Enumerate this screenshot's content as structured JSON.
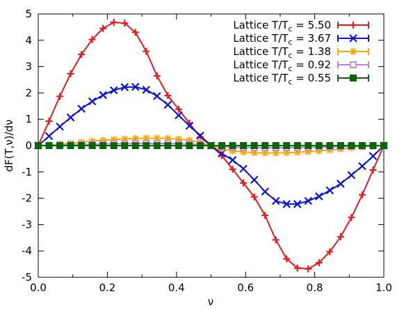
{
  "chart_data": {
    "type": "line",
    "xlabel": "ν",
    "ylabel": "dF(T,ν)/dν",
    "xlim": [
      0.0,
      1.0
    ],
    "ylim": [
      -5,
      5
    ],
    "xticks": [
      "0.0",
      "0.2",
      "0.4",
      "0.6",
      "0.8",
      "1.0"
    ],
    "yticks": [
      "-5",
      "-4",
      "-3",
      "-2",
      "-1",
      "0",
      "1",
      "2",
      "3",
      "4",
      "5"
    ],
    "grid": false,
    "legend_position": "top-right",
    "x": [
      0.0,
      0.03125,
      0.0625,
      0.09375,
      0.125,
      0.15625,
      0.1875,
      0.21875,
      0.25,
      0.28125,
      0.3125,
      0.34375,
      0.375,
      0.40625,
      0.4375,
      0.46875,
      0.5,
      0.53125,
      0.5625,
      0.59375,
      0.625,
      0.65625,
      0.6875,
      0.71875,
      0.75,
      0.78125,
      0.8125,
      0.84375,
      0.875,
      0.90625,
      0.9375,
      0.96875,
      1.0
    ],
    "series": [
      {
        "name_prefix": "Lattice T/T",
        "name_sub": "c",
        "name_suffix": " = 5.50",
        "marker": "plus",
        "color": "#e41a1c",
        "values": [
          0.0,
          0.93,
          1.87,
          2.73,
          3.46,
          4.03,
          4.45,
          4.68,
          4.65,
          4.3,
          3.58,
          2.65,
          1.9,
          1.38,
          0.85,
          0.32,
          0.0,
          -0.38,
          -0.9,
          -1.42,
          -1.95,
          -2.65,
          -3.58,
          -4.3,
          -4.65,
          -4.68,
          -4.45,
          -4.03,
          -3.46,
          -2.73,
          -1.87,
          -0.93,
          0.0
        ]
      },
      {
        "name_prefix": "Lattice T/T",
        "name_sub": "c",
        "name_suffix": " = 3.67",
        "marker": "x",
        "color": "#0a14d8",
        "values": [
          0.0,
          0.36,
          0.72,
          1.07,
          1.4,
          1.68,
          1.92,
          2.1,
          2.22,
          2.23,
          2.12,
          1.88,
          1.55,
          1.15,
          0.75,
          0.38,
          0.0,
          -0.3,
          -0.55,
          -0.88,
          -1.3,
          -1.75,
          -2.1,
          -2.22,
          -2.22,
          -2.1,
          -1.93,
          -1.7,
          -1.45,
          -1.12,
          -0.78,
          -0.4,
          0.0
        ]
      },
      {
        "name_prefix": "Lattice T/T",
        "name_sub": "c",
        "name_suffix": " = 1.38",
        "marker": "star",
        "color": "#ffa500",
        "values": [
          0.0,
          0.02,
          0.05,
          0.09,
          0.13,
          0.17,
          0.2,
          0.23,
          0.25,
          0.27,
          0.28,
          0.28,
          0.27,
          0.24,
          0.2,
          0.12,
          0.0,
          -0.12,
          -0.2,
          -0.24,
          -0.27,
          -0.28,
          -0.28,
          -0.27,
          -0.25,
          -0.23,
          -0.2,
          -0.17,
          -0.13,
          -0.09,
          -0.05,
          -0.02,
          0.0
        ]
      },
      {
        "name_prefix": "Lattice T/T",
        "name_sub": "c",
        "name_suffix": " = 0.92",
        "marker": "square-open",
        "color": "#c080e0",
        "values": [
          0.0,
          0.01,
          0.02,
          0.03,
          0.04,
          0.05,
          0.06,
          0.07,
          0.07,
          0.08,
          0.08,
          0.08,
          0.08,
          0.07,
          0.06,
          0.04,
          0.0,
          -0.04,
          -0.06,
          -0.07,
          -0.08,
          -0.08,
          -0.08,
          -0.08,
          -0.07,
          -0.07,
          -0.06,
          -0.05,
          -0.04,
          -0.03,
          -0.02,
          -0.01,
          0.0
        ]
      },
      {
        "name_prefix": "Lattice T/T",
        "name_sub": "c",
        "name_suffix": " = 0.55",
        "marker": "square-filled",
        "color": "#0a640a",
        "values": [
          0.0,
          0.0,
          0.0,
          0.0,
          0.0,
          0.0,
          0.0,
          0.0,
          0.0,
          0.0,
          0.0,
          0.0,
          0.0,
          0.0,
          0.0,
          0.0,
          0.0,
          0.0,
          0.0,
          0.0,
          0.0,
          0.0,
          0.0,
          0.0,
          0.0,
          0.0,
          0.0,
          0.0,
          0.0,
          0.0,
          0.0,
          0.0,
          0.0
        ]
      }
    ]
  }
}
